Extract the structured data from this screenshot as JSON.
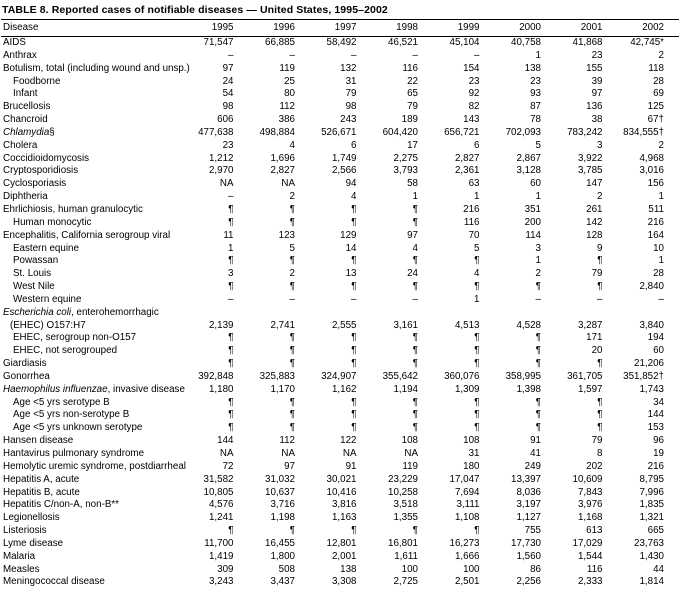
{
  "title": "TABLE 8. Reported cases of notifiable diseases — United States, 1995–2002",
  "table": {
    "columns": [
      "Disease",
      "1995",
      "1996",
      "1997",
      "1998",
      "1999",
      "2000",
      "2001",
      "2002"
    ],
    "rows": [
      {
        "label": "AIDS",
        "indent": 0,
        "values": [
          "71,547",
          "66,885",
          "58,492",
          "46,521",
          "45,104",
          "40,758",
          "41,868",
          "42,745*"
        ]
      },
      {
        "label": "Anthrax",
        "indent": 0,
        "values": [
          "–",
          "–",
          "–",
          "–",
          "–",
          "1",
          "23",
          "2"
        ]
      },
      {
        "label": "Botulism, total (including wound and unsp.)",
        "indent": 0,
        "values": [
          "97",
          "119",
          "132",
          "116",
          "154",
          "138",
          "155",
          "118"
        ]
      },
      {
        "label": "Foodborne",
        "indent": 1,
        "values": [
          "24",
          "25",
          "31",
          "22",
          "23",
          "23",
          "39",
          "28"
        ]
      },
      {
        "label": "Infant",
        "indent": 1,
        "values": [
          "54",
          "80",
          "79",
          "65",
          "92",
          "93",
          "97",
          "69"
        ]
      },
      {
        "label": "Brucellosis",
        "indent": 0,
        "values": [
          "98",
          "112",
          "98",
          "79",
          "82",
          "87",
          "136",
          "125"
        ]
      },
      {
        "label": "Chancroid",
        "indent": 0,
        "values": [
          "606",
          "386",
          "243",
          "189",
          "143",
          "78",
          "38",
          "67†"
        ]
      },
      {
        "pre": "Chlamydia",
        "label": "§",
        "indent": 0,
        "values": [
          "477,638",
          "498,884",
          "526,671",
          "604,420",
          "656,721",
          "702,093",
          "783,242",
          "834,555†"
        ]
      },
      {
        "label": "Cholera",
        "indent": 0,
        "values": [
          "23",
          "4",
          "6",
          "17",
          "6",
          "5",
          "3",
          "2"
        ]
      },
      {
        "label": "Coccidioidomycosis",
        "indent": 0,
        "values": [
          "1,212",
          "1,696",
          "1,749",
          "2,275",
          "2,827",
          "2,867",
          "3,922",
          "4,968"
        ]
      },
      {
        "label": "Cryptosporidiosis",
        "indent": 0,
        "values": [
          "2,970",
          "2,827",
          "2,566",
          "3,793",
          "2,361",
          "3,128",
          "3,785",
          "3,016"
        ]
      },
      {
        "label": "Cyclosporiasis",
        "indent": 0,
        "values": [
          "NA",
          "NA",
          "94",
          "58",
          "63",
          "60",
          "147",
          "156"
        ]
      },
      {
        "label": "Diphtheria",
        "indent": 0,
        "values": [
          "–",
          "2",
          "4",
          "1",
          "1",
          "1",
          "2",
          "1"
        ]
      },
      {
        "label": "Ehrlichiosis, human granulocytic",
        "indent": 0,
        "values": [
          "¶",
          "¶",
          "¶",
          "¶",
          "216",
          "351",
          "261",
          "511"
        ]
      },
      {
        "label": "Human monocytic",
        "indent": 1,
        "values": [
          "¶",
          "¶",
          "¶",
          "¶",
          "116",
          "200",
          "142",
          "216"
        ]
      },
      {
        "label": "Encephalitis, California serogroup viral",
        "indent": 0,
        "values": [
          "11",
          "123",
          "129",
          "97",
          "70",
          "114",
          "128",
          "164"
        ]
      },
      {
        "label": "Eastern equine",
        "indent": 1,
        "values": [
          "1",
          "5",
          "14",
          "4",
          "5",
          "3",
          "9",
          "10"
        ]
      },
      {
        "label": "Powassan",
        "indent": 1,
        "values": [
          "¶",
          "¶",
          "¶",
          "¶",
          "¶",
          "1",
          "¶",
          "1"
        ]
      },
      {
        "label": "St. Louis",
        "indent": 1,
        "values": [
          "3",
          "2",
          "13",
          "24",
          "4",
          "2",
          "79",
          "28"
        ]
      },
      {
        "label": "West Nile",
        "indent": 1,
        "values": [
          "¶",
          "¶",
          "¶",
          "¶",
          "¶",
          "¶",
          "¶",
          "2,840"
        ]
      },
      {
        "label": "Western equine",
        "indent": 1,
        "values": [
          "–",
          "–",
          "–",
          "–",
          "1",
          "–",
          "–",
          "–"
        ]
      },
      {
        "pre": "Escherichia coli",
        "label": ", enterohemorrhagic",
        "label2": "(EHEC) O157:H7",
        "indent": 0,
        "values": [
          "2,139",
          "2,741",
          "2,555",
          "3,161",
          "4,513",
          "4,528",
          "3,287",
          "3,840"
        ]
      },
      {
        "label": "EHEC, serogroup non-O157",
        "indent": 1,
        "values": [
          "¶",
          "¶",
          "¶",
          "¶",
          "¶",
          "¶",
          "171",
          "194"
        ]
      },
      {
        "label": "EHEC, not serogrouped",
        "indent": 1,
        "values": [
          "¶",
          "¶",
          "¶",
          "¶",
          "¶",
          "¶",
          "20",
          "60"
        ]
      },
      {
        "label": "Giardiasis",
        "indent": 0,
        "values": [
          "¶",
          "¶",
          "¶",
          "¶",
          "¶",
          "¶",
          "¶",
          "21,206"
        ]
      },
      {
        "label": "Gonorrhea",
        "indent": 0,
        "values": [
          "392,848",
          "325,883",
          "324,907",
          "355,642",
          "360,076",
          "358,995",
          "361,705",
          "351,852†"
        ]
      },
      {
        "pre": "Haemophilus influenzae",
        "label": ", invasive disease",
        "indent": 0,
        "values": [
          "1,180",
          "1,170",
          "1,162",
          "1,194",
          "1,309",
          "1,398",
          "1,597",
          "1,743"
        ]
      },
      {
        "label": "Age <5 yrs serotype B",
        "indent": 1,
        "values": [
          "¶",
          "¶",
          "¶",
          "¶",
          "¶",
          "¶",
          "¶",
          "34"
        ]
      },
      {
        "label": "Age <5 yrs non-serotype B",
        "indent": 1,
        "values": [
          "¶",
          "¶",
          "¶",
          "¶",
          "¶",
          "¶",
          "¶",
          "144"
        ]
      },
      {
        "label": "Age <5 yrs unknown serotype",
        "indent": 1,
        "values": [
          "¶",
          "¶",
          "¶",
          "¶",
          "¶",
          "¶",
          "¶",
          "153"
        ]
      },
      {
        "label": "Hansen disease",
        "indent": 0,
        "values": [
          "144",
          "112",
          "122",
          "108",
          "108",
          "91",
          "79",
          "96"
        ]
      },
      {
        "label": "Hantavirus pulmonary syndrome",
        "indent": 0,
        "values": [
          "NA",
          "NA",
          "NA",
          "NA",
          "31",
          "41",
          "8",
          "19"
        ]
      },
      {
        "label": "Hemolytic uremic syndrome, postdiarrheal",
        "indent": 0,
        "values": [
          "72",
          "97",
          "91",
          "119",
          "180",
          "249",
          "202",
          "216"
        ]
      },
      {
        "label": "Hepatitis A, acute",
        "indent": 0,
        "values": [
          "31,582",
          "31,032",
          "30,021",
          "23,229",
          "17,047",
          "13,397",
          "10,609",
          "8,795"
        ]
      },
      {
        "label": "Hepatitis B, acute",
        "indent": 0,
        "values": [
          "10,805",
          "10,637",
          "10,416",
          "10,258",
          "7,694",
          "8,036",
          "7,843",
          "7,996"
        ]
      },
      {
        "label": "Hepatitis C/non-A, non-B**",
        "indent": 0,
        "values": [
          "4,576",
          "3,716",
          "3,816",
          "3,518",
          "3,111",
          "3,197",
          "3,976",
          "1,835"
        ]
      },
      {
        "label": "Legionellosis",
        "indent": 0,
        "values": [
          "1,241",
          "1,198",
          "1,163",
          "1,355",
          "1,108",
          "1,127",
          "1,168",
          "1,321"
        ]
      },
      {
        "label": "Listeriosis",
        "indent": 0,
        "values": [
          "¶",
          "¶",
          "¶",
          "¶",
          "¶",
          "755",
          "613",
          "665"
        ]
      },
      {
        "label": "Lyme disease",
        "indent": 0,
        "values": [
          "11,700",
          "16,455",
          "12,801",
          "16,801",
          "16,273",
          "17,730",
          "17,029",
          "23,763"
        ]
      },
      {
        "label": "Malaria",
        "indent": 0,
        "values": [
          "1,419",
          "1,800",
          "2,001",
          "1,611",
          "1,666",
          "1,560",
          "1,544",
          "1,430"
        ]
      },
      {
        "label": "Measles",
        "indent": 0,
        "values": [
          "309",
          "508",
          "138",
          "100",
          "100",
          "86",
          "116",
          "44"
        ]
      },
      {
        "label": "Meningococcal disease",
        "indent": 0,
        "values": [
          "3,243",
          "3,437",
          "3,308",
          "2,725",
          "2,501",
          "2,256",
          "2,333",
          "1,814"
        ]
      }
    ]
  }
}
